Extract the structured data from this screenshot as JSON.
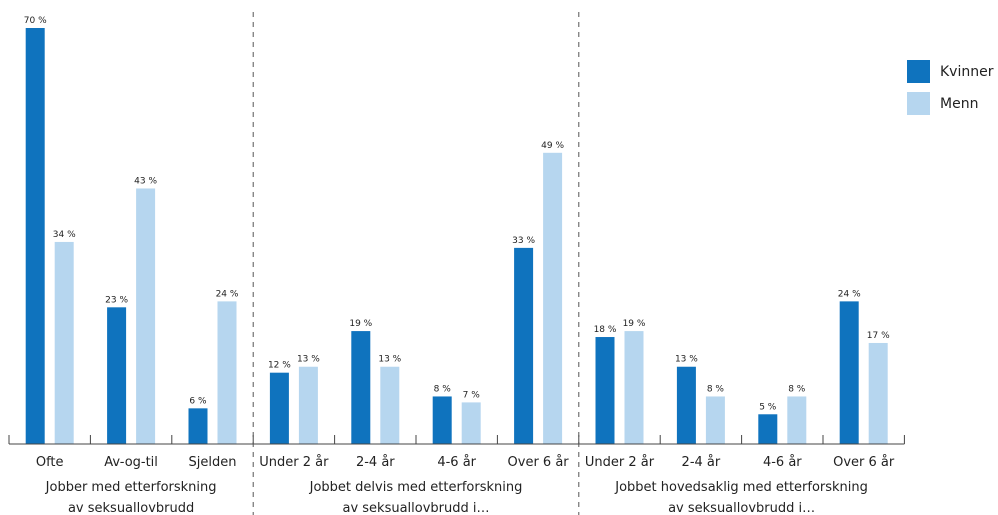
{
  "chart_data": {
    "type": "bar",
    "title": "",
    "xlabel": "",
    "ylabel": "",
    "ylim": [
      0,
      70
    ],
    "grid": false,
    "legend_position": "top-right",
    "value_suffix": " %",
    "colors": {
      "Kvinner": "#0f73be",
      "Menn": "#b6d6ef"
    },
    "groups": [
      {
        "label_lines": [
          "Jobber med etterforskning",
          "av seksuallovbrudd"
        ],
        "categories": [
          "Ofte",
          "Av-og-til",
          "Sjelden"
        ]
      },
      {
        "label_lines": [
          "Jobbet delvis med etterforskning",
          "av seksuallovbrudd i…"
        ],
        "categories": [
          "Under 2 år",
          "2-4 år",
          "4-6 år",
          "Over 6 år"
        ]
      },
      {
        "label_lines": [
          "Jobbet hovedsaklig med etterforskning",
          "av seksuallovbrudd i…"
        ],
        "categories": [
          "Under 2 år",
          "2-4 år",
          "4-6 år",
          "Over 6 år"
        ]
      }
    ],
    "categories": [
      "Ofte",
      "Av-og-til",
      "Sjelden",
      "Under 2 år",
      "2-4 år",
      "4-6 år",
      "Over 6 år",
      "Under 2 år",
      "2-4 år",
      "4-6 år",
      "Over 6 år"
    ],
    "series": [
      {
        "name": "Kvinner",
        "values": [
          70,
          23,
          6,
          12,
          19,
          8,
          33,
          18,
          13,
          5,
          24
        ]
      },
      {
        "name": "Menn",
        "values": [
          34,
          43,
          24,
          13,
          13,
          7,
          49,
          19,
          8,
          8,
          17
        ]
      }
    ]
  }
}
